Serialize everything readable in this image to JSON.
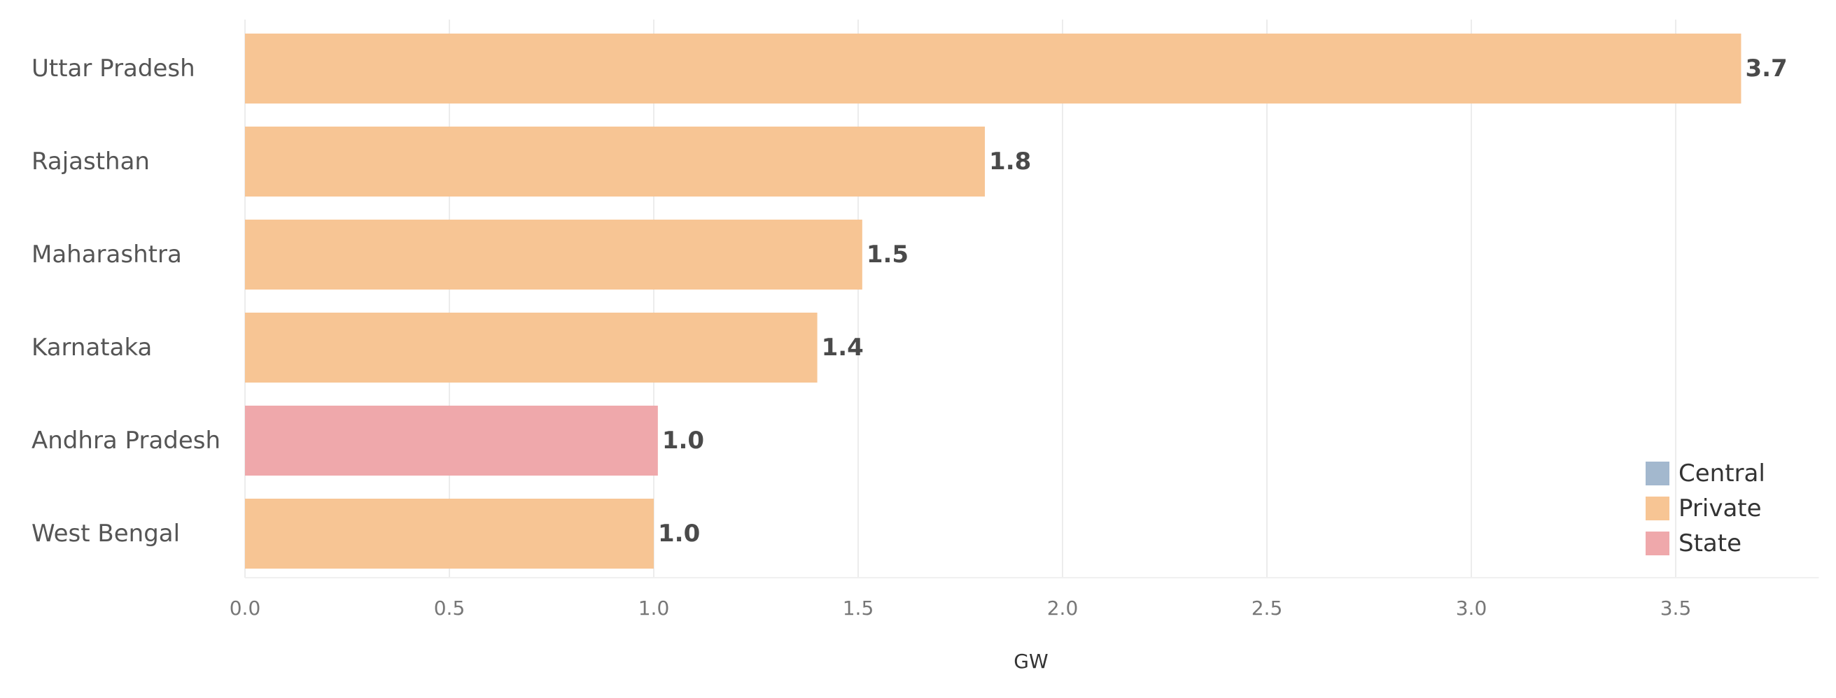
{
  "chart_data": {
    "type": "bar",
    "orientation": "horizontal",
    "categories": [
      "Uttar Pradesh",
      "Rajasthan",
      "Maharashtra",
      "Karnataka",
      "Andhra Pradesh",
      "West Bengal"
    ],
    "values": [
      3.66,
      1.81,
      1.51,
      1.4,
      1.01,
      1.0
    ],
    "value_labels": [
      "3.7",
      "1.8",
      "1.5",
      "1.4",
      "1.0",
      "1.0"
    ],
    "sectors": [
      "Private",
      "Private",
      "Private",
      "Private",
      "State",
      "Private"
    ],
    "xlabel": "GW",
    "ylabel": "",
    "xlim": [
      0,
      3.85
    ],
    "xticks": [
      0.0,
      0.5,
      1.0,
      1.5,
      2.0,
      2.5,
      3.0,
      3.5
    ],
    "xtick_labels": [
      "0.0",
      "0.5",
      "1.0",
      "1.5",
      "2.0",
      "2.5",
      "3.0",
      "3.5"
    ],
    "grid": true,
    "legend_position": "bottom-right",
    "legend": [
      {
        "name": "Central",
        "color": "#a3b8ce"
      },
      {
        "name": "Private",
        "color": "#f7c594"
      },
      {
        "name": "State",
        "color": "#efa8ab"
      }
    ]
  }
}
